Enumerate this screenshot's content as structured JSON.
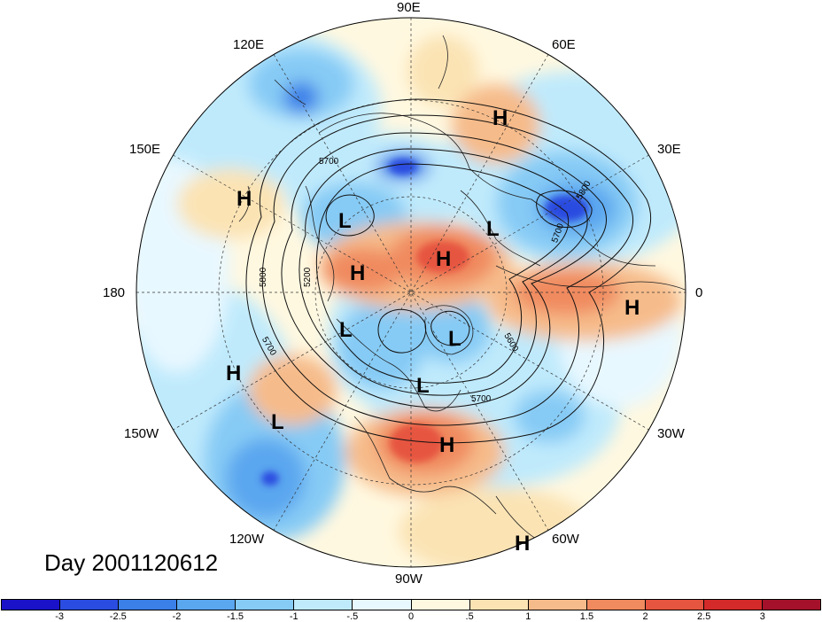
{
  "title": "Day 2001120612",
  "longitude_labels": {
    "lon_90e": "90E",
    "lon_60e": "60E",
    "lon_30e": "30E",
    "lon_0": "0",
    "lon_30w": "30W",
    "lon_60w": "60W",
    "lon_90w": "90W",
    "lon_120w": "120W",
    "lon_150w": "150W",
    "lon_180": "180",
    "lon_150e": "150E",
    "lon_120e": "120E"
  },
  "pressure_centers": [
    {
      "type": "H",
      "region": "north-russia"
    },
    {
      "type": "H",
      "region": "west-pacific"
    },
    {
      "type": "L",
      "region": "east-siberia"
    },
    {
      "type": "L",
      "region": "scandinavia"
    },
    {
      "type": "H",
      "region": "arctic-siberia"
    },
    {
      "type": "H",
      "region": "arctic"
    },
    {
      "type": "H",
      "region": "north-africa"
    },
    {
      "type": "L",
      "region": "canada-west"
    },
    {
      "type": "L",
      "region": "hudson-bay"
    },
    {
      "type": "H",
      "region": "north-pacific"
    },
    {
      "type": "L",
      "region": "great-lakes"
    },
    {
      "type": "L",
      "region": "gulf-of-alaska"
    },
    {
      "type": "H",
      "region": "southeast-us"
    },
    {
      "type": "H",
      "region": "south-atlantic"
    }
  ],
  "contour_labels": [
    "5700",
    "5800",
    "5200",
    "5800",
    "5700",
    "5600",
    "5700",
    "5700"
  ],
  "colorbar": {
    "colors": [
      "#1a12c8",
      "#2a4ce0",
      "#3b7fe8",
      "#5aa6ef",
      "#86cbf5",
      "#bfeafc",
      "#e8f8ff",
      "#fff8e0",
      "#fbe3b4",
      "#f6bb8a",
      "#f08a5f",
      "#e6553f",
      "#d42a2a",
      "#a5112a"
    ],
    "ticks": [
      "-3",
      "-2.5",
      "-2",
      "-1.5",
      "-1",
      "-.5",
      "0",
      ".5",
      "1",
      "1.5",
      "2",
      "2.5",
      "3"
    ]
  }
}
